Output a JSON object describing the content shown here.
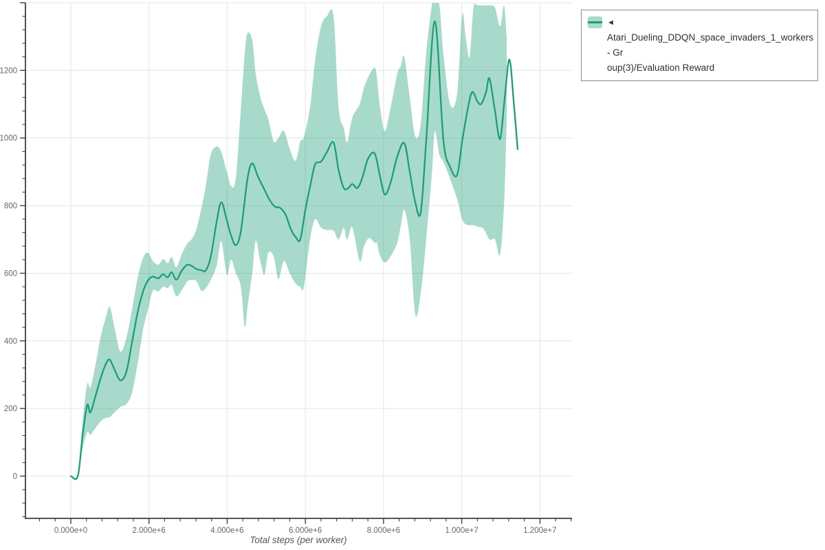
{
  "legend": {
    "marker": "◄",
    "line1": "Atari_Dueling_DDQN_space_invaders_1_workers - Gr",
    "line2": "oup(3)/Evaluation Reward"
  },
  "styles": {
    "background": "#ffffff",
    "line_color": "#1b9e77",
    "band_color": "#1b9e77",
    "band_opacity": 0.38,
    "grid_color": "#e4e4e4",
    "axis_color": "#3d3d3d",
    "tick_label_color": "#666666",
    "title_color": "#555555",
    "legend_border_color": "#8a8a8a",
    "legend_text_color": "#2f2f2f"
  },
  "chart_data": {
    "type": "line",
    "title": "",
    "xlabel": "Total steps (per worker)",
    "ylabel": "",
    "series_name": "Atari_Dueling_DDQN_space_invaders_1_workers - Group(3)/Evaluation Reward",
    "x_units": "steps (values below in millions)",
    "x_range_millions": [
      -1.16,
      12.82
    ],
    "y_range": [
      -125,
      1400
    ],
    "grid": true,
    "legend_position": "top-right",
    "x_ticks": [
      {
        "v": 0,
        "label": "0.000e+0"
      },
      {
        "v": 2,
        "label": "2.000e+6"
      },
      {
        "v": 4,
        "label": "4.000e+6"
      },
      {
        "v": 6,
        "label": "6.000e+6"
      },
      {
        "v": 8,
        "label": "8.000e+6"
      },
      {
        "v": 10,
        "label": "1.000e+7"
      },
      {
        "v": 12,
        "label": "1.200e+7"
      }
    ],
    "x_minor_step": 0.4,
    "y_ticks": [
      {
        "v": 0,
        "label": "0"
      },
      {
        "v": 200,
        "label": "200"
      },
      {
        "v": 400,
        "label": "400"
      },
      {
        "v": 600,
        "label": "600"
      },
      {
        "v": 800,
        "label": "800"
      },
      {
        "v": 1000,
        "label": "1000"
      },
      {
        "v": 1200,
        "label": "1200"
      }
    ],
    "y_grid_max": 1400,
    "y_grid_step": 200,
    "y_minor_step": 40,
    "mean": [
      [
        0.0,
        0
      ],
      [
        0.18,
        0
      ],
      [
        0.3,
        118
      ],
      [
        0.42,
        210
      ],
      [
        0.5,
        188
      ],
      [
        0.62,
        232
      ],
      [
        0.77,
        292
      ],
      [
        0.9,
        332
      ],
      [
        1.0,
        344
      ],
      [
        1.13,
        312
      ],
      [
        1.27,
        283
      ],
      [
        1.42,
        308
      ],
      [
        1.57,
        398
      ],
      [
        1.72,
        490
      ],
      [
        1.86,
        550
      ],
      [
        1.98,
        580
      ],
      [
        2.1,
        590
      ],
      [
        2.24,
        585
      ],
      [
        2.36,
        597
      ],
      [
        2.48,
        588
      ],
      [
        2.58,
        603
      ],
      [
        2.7,
        581
      ],
      [
        2.84,
        608
      ],
      [
        2.98,
        625
      ],
      [
        3.1,
        621
      ],
      [
        3.22,
        612
      ],
      [
        3.34,
        609
      ],
      [
        3.45,
        608
      ],
      [
        3.58,
        648
      ],
      [
        3.73,
        752
      ],
      [
        3.85,
        810
      ],
      [
        3.99,
        757
      ],
      [
        4.1,
        712
      ],
      [
        4.22,
        683
      ],
      [
        4.35,
        724
      ],
      [
        4.52,
        880
      ],
      [
        4.64,
        925
      ],
      [
        4.78,
        888
      ],
      [
        4.95,
        848
      ],
      [
        5.08,
        818
      ],
      [
        5.22,
        797
      ],
      [
        5.36,
        793
      ],
      [
        5.5,
        772
      ],
      [
        5.63,
        730
      ],
      [
        5.76,
        706
      ],
      [
        5.87,
        700
      ],
      [
        6.0,
        788
      ],
      [
        6.12,
        856
      ],
      [
        6.25,
        922
      ],
      [
        6.4,
        930
      ],
      [
        6.55,
        958
      ],
      [
        6.72,
        987
      ],
      [
        6.85,
        905
      ],
      [
        6.98,
        852
      ],
      [
        7.1,
        852
      ],
      [
        7.2,
        864
      ],
      [
        7.33,
        852
      ],
      [
        7.45,
        880
      ],
      [
        7.6,
        938
      ],
      [
        7.77,
        955
      ],
      [
        7.9,
        892
      ],
      [
        8.03,
        833
      ],
      [
        8.18,
        868
      ],
      [
        8.35,
        945
      ],
      [
        8.53,
        985
      ],
      [
        8.67,
        900
      ],
      [
        8.81,
        810
      ],
      [
        8.95,
        780
      ],
      [
        9.09,
        990
      ],
      [
        9.31,
        1345
      ],
      [
        9.53,
        995
      ],
      [
        9.7,
        915
      ],
      [
        9.88,
        890
      ],
      [
        10.01,
        990
      ],
      [
        10.16,
        1090
      ],
      [
        10.27,
        1136
      ],
      [
        10.4,
        1108
      ],
      [
        10.5,
        1101
      ],
      [
        10.62,
        1135
      ],
      [
        10.71,
        1176
      ],
      [
        10.85,
        1080
      ],
      [
        10.98,
        997
      ],
      [
        11.1,
        1120
      ],
      [
        11.22,
        1232
      ],
      [
        11.33,
        1105
      ],
      [
        11.43,
        967
      ]
    ],
    "band": [
      [
        0.0,
        0,
        0
      ],
      [
        0.18,
        0,
        0
      ],
      [
        0.3,
        80,
        160
      ],
      [
        0.42,
        130,
        272
      ],
      [
        0.5,
        122,
        262
      ],
      [
        0.62,
        140,
        322
      ],
      [
        0.77,
        163,
        415
      ],
      [
        0.9,
        172,
        470
      ],
      [
        1.0,
        175,
        500
      ],
      [
        1.13,
        190,
        432
      ],
      [
        1.27,
        205,
        368
      ],
      [
        1.42,
        213,
        408
      ],
      [
        1.57,
        248,
        495
      ],
      [
        1.72,
        340,
        592
      ],
      [
        1.86,
        440,
        648
      ],
      [
        1.98,
        495,
        660
      ],
      [
        2.1,
        548,
        636
      ],
      [
        2.24,
        546,
        625
      ],
      [
        2.36,
        560,
        642
      ],
      [
        2.48,
        556,
        630
      ],
      [
        2.58,
        566,
        648
      ],
      [
        2.7,
        532,
        618
      ],
      [
        2.84,
        550,
        657
      ],
      [
        2.98,
        576,
        688
      ],
      [
        3.1,
        580,
        702
      ],
      [
        3.22,
        576,
        733
      ],
      [
        3.34,
        548,
        792
      ],
      [
        3.45,
        556,
        856
      ],
      [
        3.58,
        580,
        950
      ],
      [
        3.73,
        622,
        975
      ],
      [
        3.85,
        695,
        958
      ],
      [
        3.99,
        595,
        900
      ],
      [
        4.1,
        640,
        858
      ],
      [
        4.22,
        600,
        880
      ],
      [
        4.35,
        560,
        1085
      ],
      [
        4.45,
        442,
        1250
      ],
      [
        4.52,
        500,
        1310
      ],
      [
        4.64,
        600,
        1290
      ],
      [
        4.73,
        696,
        1190
      ],
      [
        4.84,
        640,
        1125
      ],
      [
        4.95,
        595,
        1085
      ],
      [
        5.05,
        660,
        1057
      ],
      [
        5.19,
        649,
        990
      ],
      [
        5.31,
        583,
        1000
      ],
      [
        5.45,
        636,
        1021
      ],
      [
        5.6,
        600,
        968
      ],
      [
        5.75,
        569,
        933
      ],
      [
        5.87,
        560,
        990
      ],
      [
        5.96,
        559,
        1002
      ],
      [
        6.12,
        700,
        1090
      ],
      [
        6.25,
        760,
        1230
      ],
      [
        6.4,
        735,
        1330
      ],
      [
        6.55,
        728,
        1360
      ],
      [
        6.72,
        726,
        1360
      ],
      [
        6.85,
        700,
        1090
      ],
      [
        6.98,
        734,
        1031
      ],
      [
        7.07,
        700,
        987
      ],
      [
        7.2,
        736,
        1060
      ],
      [
        7.39,
        636,
        1100
      ],
      [
        7.5,
        680,
        1150
      ],
      [
        7.63,
        704,
        1185
      ],
      [
        7.77,
        690,
        1208
      ],
      [
        7.83,
        690,
        1180
      ],
      [
        7.9,
        655,
        1100
      ],
      [
        8.03,
        632,
        1021
      ],
      [
        8.18,
        650,
        1090
      ],
      [
        8.35,
        690,
        1190
      ],
      [
        8.44,
        740,
        1212
      ],
      [
        8.53,
        788,
        1240
      ],
      [
        8.67,
        700,
        1120
      ],
      [
        8.81,
        478,
        1005
      ],
      [
        8.95,
        540,
        1040
      ],
      [
        9.09,
        700,
        1250
      ],
      [
        9.24,
        900,
        1395
      ],
      [
        9.31,
        1020,
        1398
      ],
      [
        9.43,
        950,
        1390
      ],
      [
        9.53,
        930,
        1250
      ],
      [
        9.7,
        880,
        1100
      ],
      [
        9.88,
        820,
        1130
      ],
      [
        10.01,
        760,
        1363
      ],
      [
        10.1,
        745,
        1300
      ],
      [
        10.2,
        742,
        1240
      ],
      [
        10.3,
        742,
        1385
      ],
      [
        10.4,
        738,
        1392
      ],
      [
        10.55,
        732,
        1392
      ],
      [
        10.71,
        700,
        1392
      ],
      [
        10.85,
        700,
        1385
      ],
      [
        10.98,
        655,
        1330
      ],
      [
        11.08,
        800,
        1392
      ],
      [
        11.15,
        1050,
        1300
      ]
    ]
  }
}
